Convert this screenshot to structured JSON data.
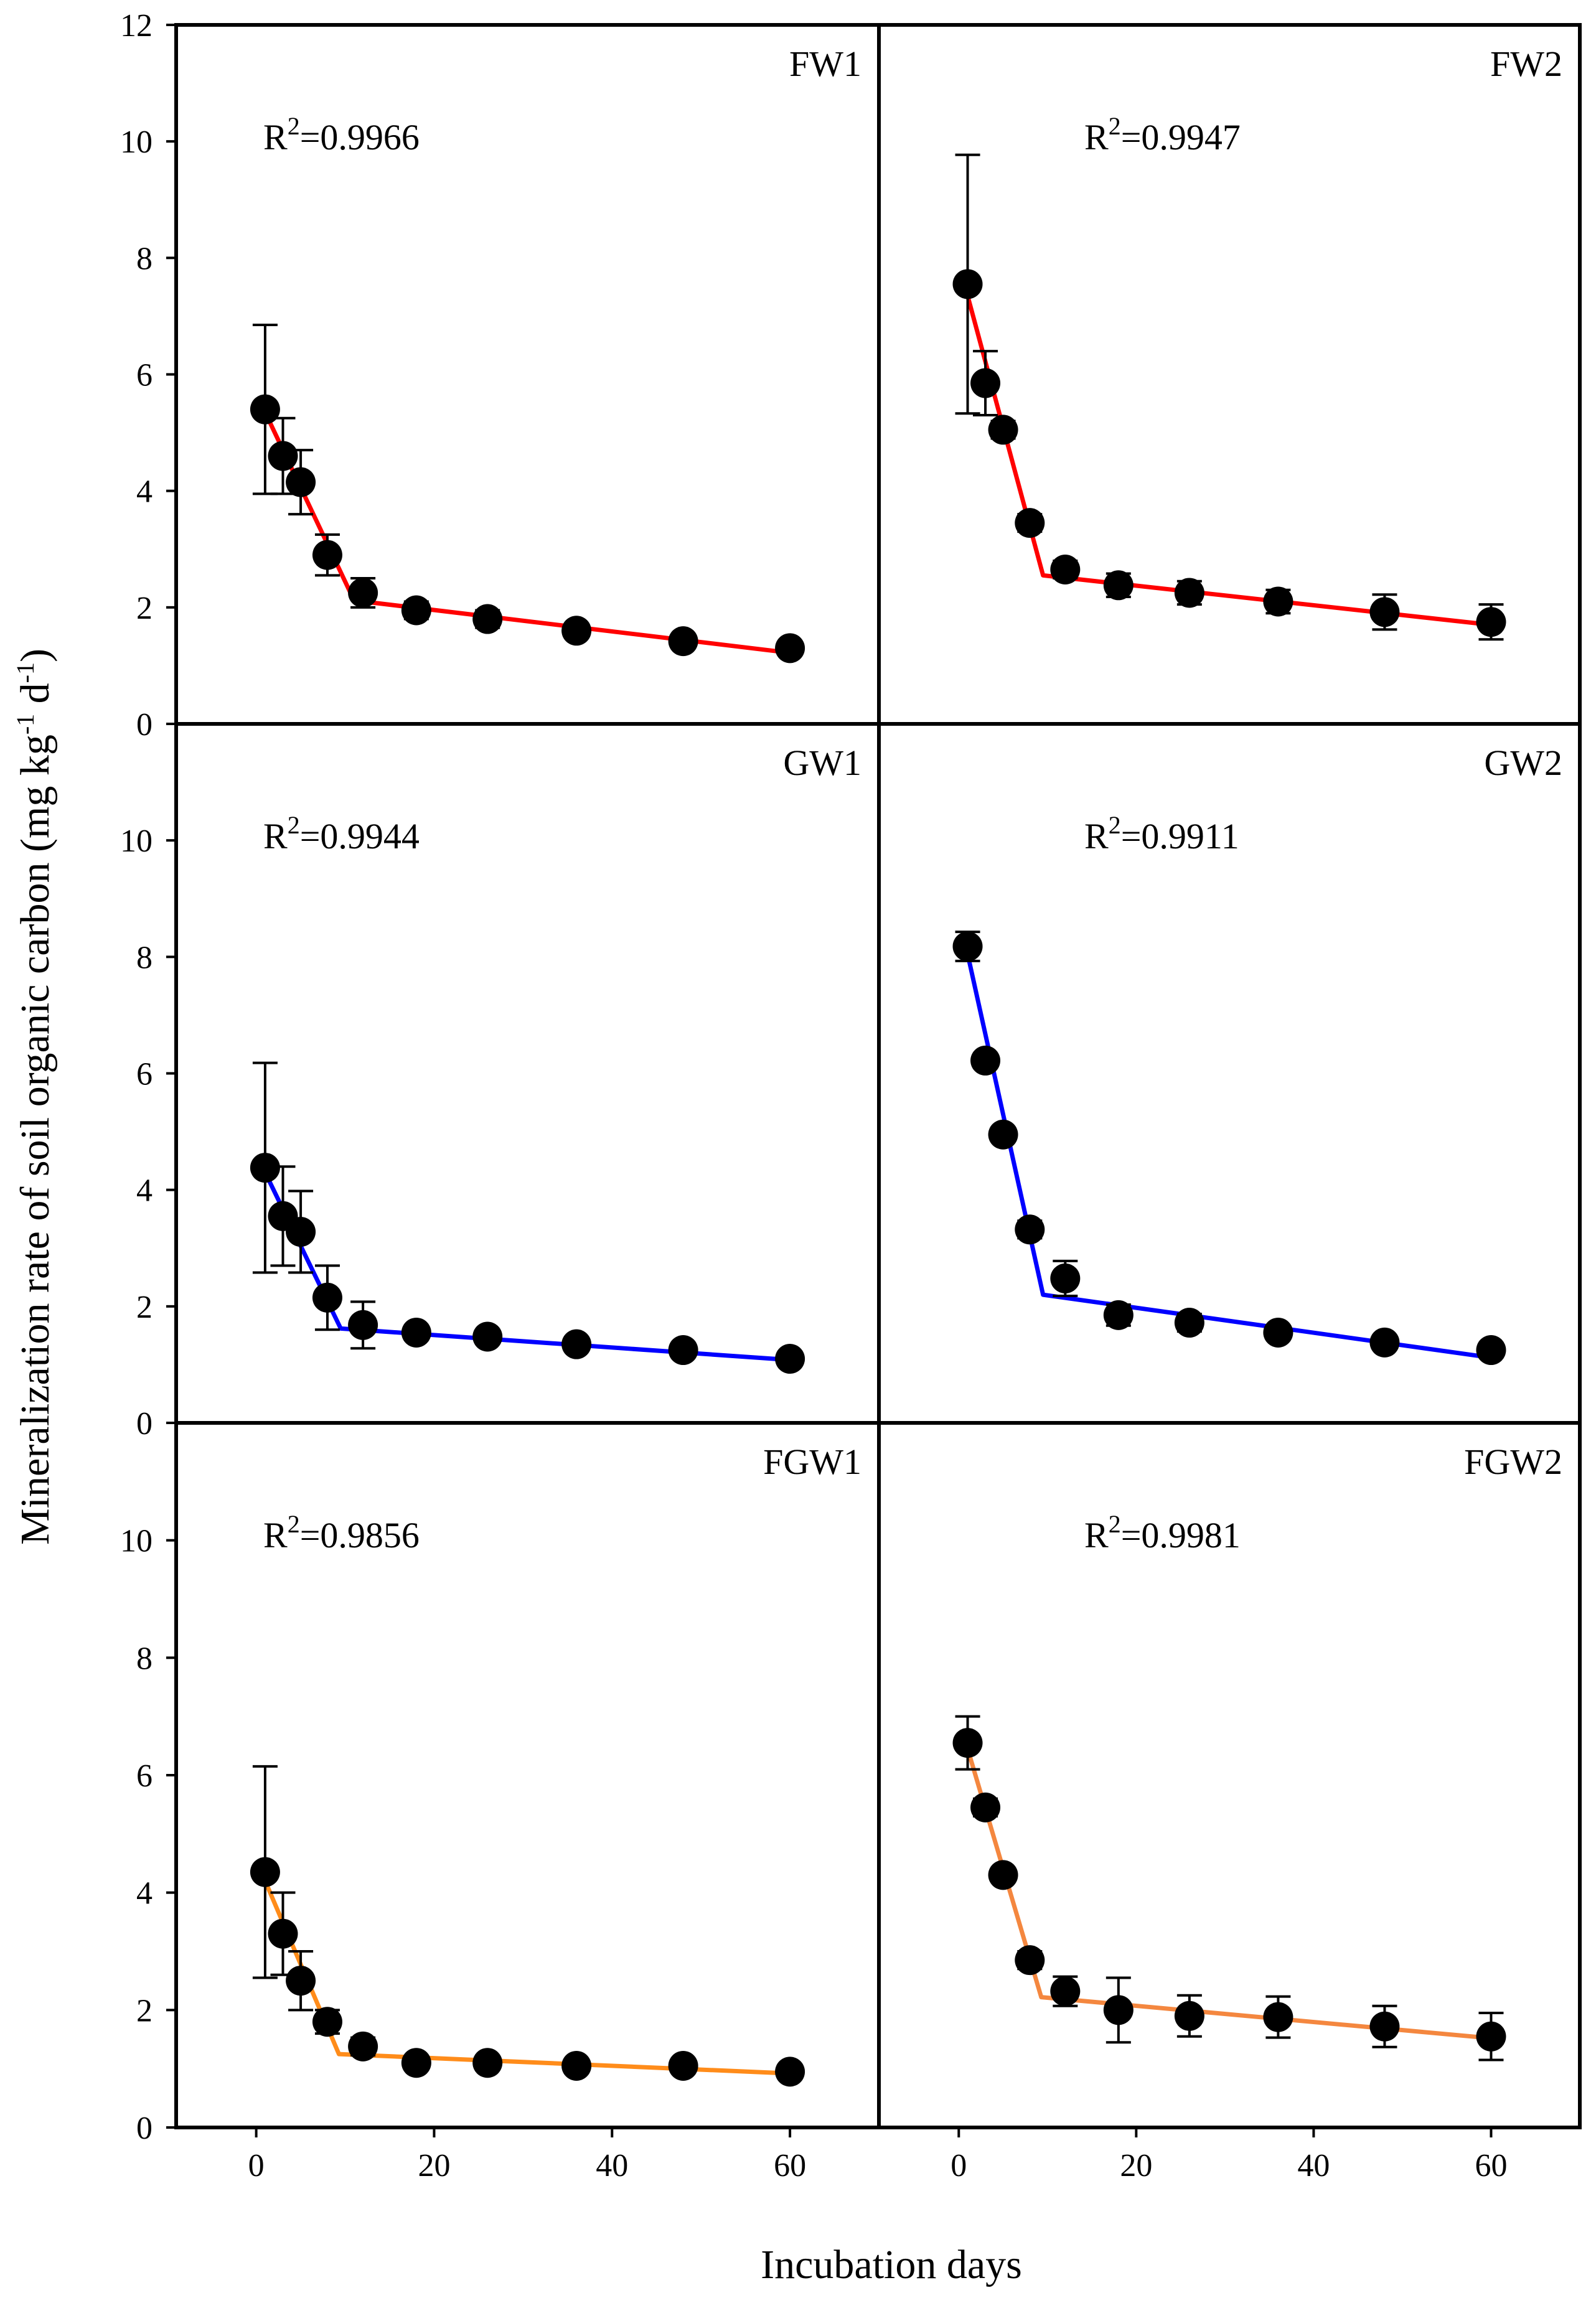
{
  "chart_data": {
    "type": "scatter",
    "layout": "3x2 panel grid",
    "ylabel": {
      "text": "Mineralization rate of soil organic carbon (mg kg",
      "sup1": "-1",
      "mid": " d",
      "sup2": "-1",
      "end": ")"
    },
    "xlabel": "Incubation days",
    "xlim": [
      -9,
      70
    ],
    "ylim": [
      0,
      12
    ],
    "xticks": [
      "0",
      "20",
      "40",
      "60"
    ],
    "xtick_values": [
      0,
      20,
      40,
      60
    ],
    "yticks": [
      "0",
      "2",
      "4",
      "6",
      "8",
      "10",
      "12"
    ],
    "ytick_values": [
      0,
      2,
      4,
      6,
      8,
      10,
      12
    ],
    "panels": [
      {
        "id": "FW1",
        "title": "FW1",
        "r2_prefix": "R",
        "r2_sup": "2",
        "r2_value": "=0.9966",
        "color": "#ff0000",
        "x": [
          1,
          3,
          5,
          8,
          12,
          18,
          26,
          36,
          48,
          60
        ],
        "y": [
          5.4,
          4.6,
          4.15,
          2.9,
          2.25,
          1.95,
          1.8,
          1.6,
          1.42,
          1.3
        ],
        "err": [
          1.45,
          0.65,
          0.55,
          0.35,
          0.25,
          0.15,
          0.15,
          0.12,
          0.12,
          0.1
        ],
        "fit": [
          [
            1,
            5.35
          ],
          [
            11,
            2.12
          ],
          [
            60,
            1.22
          ]
        ]
      },
      {
        "id": "FW2",
        "title": "FW2",
        "r2_prefix": "R",
        "r2_sup": "2",
        "r2_value": "=0.9947",
        "color": "#ff0000",
        "x": [
          1,
          3,
          5,
          8,
          12,
          18,
          26,
          36,
          48,
          60
        ],
        "y": [
          7.55,
          5.85,
          5.05,
          3.45,
          2.65,
          2.38,
          2.25,
          2.1,
          1.92,
          1.75
        ],
        "err": [
          2.22,
          0.55,
          0.15,
          0.15,
          0.15,
          0.2,
          0.2,
          0.2,
          0.3,
          0.3
        ],
        "fit": [
          [
            1,
            7.35
          ],
          [
            9.5,
            2.55
          ],
          [
            60,
            1.7
          ]
        ]
      },
      {
        "id": "GW1",
        "title": "GW1",
        "r2_prefix": "R",
        "r2_sup": "2",
        "r2_value": "=0.9944",
        "color": "#0000ff",
        "x": [
          1,
          3,
          5,
          8,
          12,
          18,
          26,
          36,
          48,
          60
        ],
        "y": [
          4.38,
          3.55,
          3.28,
          2.15,
          1.68,
          1.55,
          1.48,
          1.35,
          1.25,
          1.1
        ],
        "err": [
          1.8,
          0.85,
          0.7,
          0.55,
          0.4,
          0.12,
          0.12,
          0.12,
          0.12,
          0.12
        ],
        "fit": [
          [
            1,
            4.3
          ],
          [
            9.5,
            1.62
          ],
          [
            60,
            1.08
          ]
        ]
      },
      {
        "id": "GW2",
        "title": "GW2",
        "r2_prefix": "R",
        "r2_sup": "2",
        "r2_value": "=0.9911",
        "color": "#0000ff",
        "x": [
          1,
          3,
          5,
          8,
          12,
          18,
          26,
          36,
          48,
          60
        ],
        "y": [
          8.18,
          6.22,
          4.95,
          3.32,
          2.48,
          1.85,
          1.72,
          1.55,
          1.38,
          1.25
        ],
        "err": [
          0.25,
          0.12,
          0.12,
          0.15,
          0.3,
          0.18,
          0.15,
          0.12,
          0.12,
          0.12
        ],
        "fit": [
          [
            1,
            8.05
          ],
          [
            9.5,
            2.2
          ],
          [
            60,
            1.12
          ]
        ]
      },
      {
        "id": "FGW1",
        "title": "FGW1",
        "r2_prefix": "R",
        "r2_sup": "2",
        "r2_value": "=0.9856",
        "color": "#ff8c1a",
        "x": [
          1,
          3,
          5,
          8,
          12,
          18,
          26,
          36,
          48,
          60
        ],
        "y": [
          4.35,
          3.3,
          2.5,
          1.8,
          1.38,
          1.1,
          1.1,
          1.05,
          1.05,
          0.95
        ],
        "err": [
          1.8,
          0.7,
          0.5,
          0.2,
          0.15,
          0.12,
          0.12,
          0.1,
          0.1,
          0.1
        ],
        "fit": [
          [
            1,
            4.2
          ],
          [
            9.3,
            1.25
          ],
          [
            60,
            0.92
          ]
        ]
      },
      {
        "id": "FGW2",
        "title": "FGW2",
        "r2_prefix": "R",
        "r2_sup": "2",
        "r2_value": "=0.9981",
        "color": "#f4873f",
        "x": [
          1,
          3,
          5,
          8,
          12,
          18,
          26,
          36,
          48,
          60
        ],
        "y": [
          6.55,
          5.45,
          4.3,
          2.85,
          2.32,
          2.0,
          1.9,
          1.88,
          1.72,
          1.55
        ],
        "err": [
          0.45,
          0.15,
          0.12,
          0.15,
          0.25,
          0.55,
          0.35,
          0.35,
          0.35,
          0.4
        ],
        "fit": [
          [
            1,
            6.45
          ],
          [
            9.3,
            2.22
          ],
          [
            60,
            1.52
          ]
        ]
      }
    ]
  }
}
